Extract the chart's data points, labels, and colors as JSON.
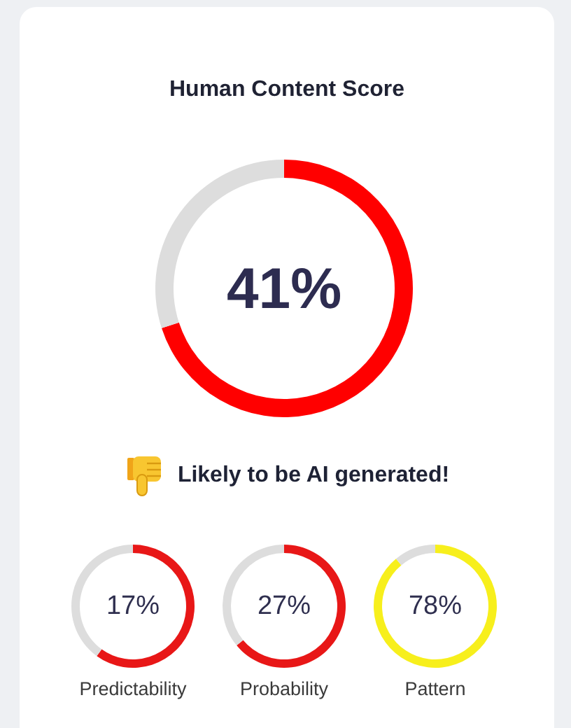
{
  "chart_data": [
    {
      "type": "donut",
      "title": "Human Content Score",
      "categories": [
        null,
        null
      ],
      "values": [
        70,
        30
      ],
      "colors": [
        "#ff0000",
        "#dddddd"
      ],
      "annotations": [
        "41%",
        "Likely to be AI generated!"
      ]
    },
    {
      "type": "donut",
      "title": "Predictability",
      "categories": [
        null,
        null
      ],
      "values": [
        60,
        40
      ],
      "colors": [
        "#e81717",
        "#dddddd"
      ],
      "annotations": [
        "17%"
      ]
    },
    {
      "type": "donut",
      "title": "Probability",
      "categories": [
        null,
        null
      ],
      "values": [
        64,
        36
      ],
      "colors": [
        "#e81717",
        "#dddddd"
      ],
      "annotations": [
        "27%"
      ]
    },
    {
      "type": "donut",
      "title": "Pattern",
      "categories": [
        null,
        null
      ],
      "values": [
        89,
        11
      ],
      "colors": [
        "#f7ef1c",
        "#dddddd"
      ],
      "annotations": [
        "78%"
      ]
    }
  ]
}
